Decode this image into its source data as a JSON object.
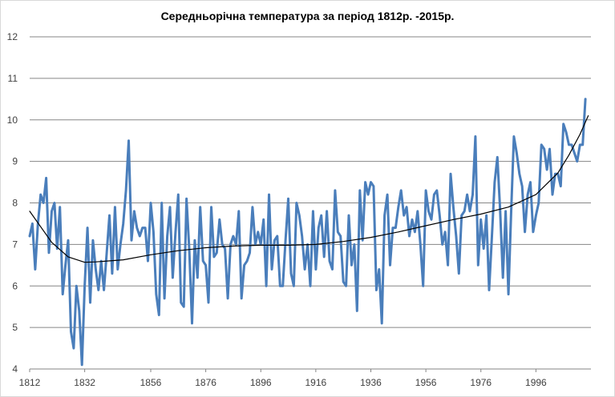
{
  "chart_data": {
    "type": "line",
    "title": "Середньорічна температура за період 1812р. -2015р.",
    "xlabel": "",
    "ylabel": "",
    "xlim": [
      1812,
      2016
    ],
    "ylim": [
      4,
      12
    ],
    "grid": true,
    "legend": "none",
    "x_tick_labels": [
      "1812",
      "1832",
      "1856",
      "1876",
      "1896",
      "1916",
      "1936",
      "1956",
      "1976",
      "1996"
    ],
    "y_tick_labels": [
      "4",
      "5",
      "6",
      "7",
      "8",
      "9",
      "10",
      "11",
      "12"
    ],
    "series": [
      {
        "type": "line",
        "color": "#4a7ebb",
        "x_start": 1812,
        "x_step": 1,
        "values": [
          7.2,
          7.5,
          6.4,
          7.5,
          8.2,
          8.0,
          8.6,
          6.8,
          7.8,
          8.0,
          6.9,
          7.9,
          5.8,
          6.5,
          7.1,
          4.9,
          4.5,
          6.0,
          5.4,
          4.1,
          6.0,
          7.4,
          5.6,
          7.1,
          6.4,
          5.9,
          6.6,
          5.9,
          6.8,
          7.7,
          6.3,
          7.9,
          6.4,
          7.0,
          7.5,
          8.3,
          9.5,
          7.1,
          7.8,
          7.4,
          7.2,
          7.4,
          7.4,
          6.6,
          8.0,
          7.3,
          5.8,
          5.3,
          8.0,
          5.7,
          7.2,
          7.9,
          6.2,
          7.3,
          8.2,
          5.6,
          5.5,
          8.1,
          6.9,
          5.1,
          7.1,
          6.2,
          7.9,
          6.6,
          6.5,
          5.6,
          7.9,
          6.7,
          6.8,
          7.6,
          7.0,
          6.9,
          5.7,
          7.0,
          7.2,
          7.0,
          7.8,
          5.7,
          6.5,
          6.6,
          6.8,
          7.9,
          7.0,
          7.3,
          7.0,
          7.6,
          6.0,
          8.2,
          6.4,
          7.1,
          7.2,
          6.0,
          6.0,
          7.1,
          8.1,
          6.3,
          6.0,
          8.0,
          7.7,
          7.2,
          6.4,
          7.0,
          6.0,
          7.8,
          6.4,
          7.4,
          7.7,
          6.7,
          7.8,
          6.6,
          6.4,
          8.3,
          7.3,
          7.2,
          6.1,
          6.0,
          7.7,
          6.5,
          7.0,
          5.4,
          8.3,
          7.1,
          8.5,
          8.2,
          8.5,
          8.4,
          5.9,
          6.4,
          5.1,
          7.7,
          8.2,
          6.5,
          7.4,
          7.4,
          7.9,
          8.3,
          7.7,
          7.9,
          7.2,
          7.6,
          7.3,
          7.8,
          7.0,
          6.0,
          8.3,
          7.8,
          7.6,
          8.2,
          8.3,
          7.7,
          7.0,
          7.3,
          6.5,
          8.7,
          7.9,
          7.2,
          6.3,
          7.7,
          7.8,
          8.2,
          7.8,
          8.2,
          9.6,
          6.5,
          7.6,
          6.9,
          7.7,
          5.9,
          7.2,
          8.5,
          9.1,
          7.8,
          6.2,
          7.8,
          5.8,
          7.8,
          9.6,
          9.2,
          8.7,
          8.4,
          7.3,
          8.2,
          8.5,
          7.3,
          7.7,
          8.0,
          9.4,
          9.3,
          8.8,
          9.3,
          8.2,
          8.7,
          8.7,
          8.4,
          9.9,
          9.7,
          9.4,
          9.4,
          9.2,
          9.0,
          9.4,
          9.4,
          10.5
        ]
      },
      {
        "type": "trendline",
        "color": "#000000",
        "x": [
          1812,
          1820,
          1826,
          1832,
          1836,
          1846,
          1856,
          1866,
          1876,
          1886,
          1896,
          1906,
          1916,
          1926,
          1936,
          1946,
          1956,
          1966,
          1976,
          1986,
          1996,
          2004,
          2008,
          2012,
          2015
        ],
        "values": [
          7.8,
          7.05,
          6.7,
          6.57,
          6.58,
          6.63,
          6.75,
          6.85,
          6.92,
          6.96,
          6.98,
          6.98,
          7.0,
          7.07,
          7.17,
          7.3,
          7.45,
          7.6,
          7.73,
          7.9,
          8.2,
          8.72,
          9.15,
          9.65,
          10.1
        ]
      }
    ]
  }
}
